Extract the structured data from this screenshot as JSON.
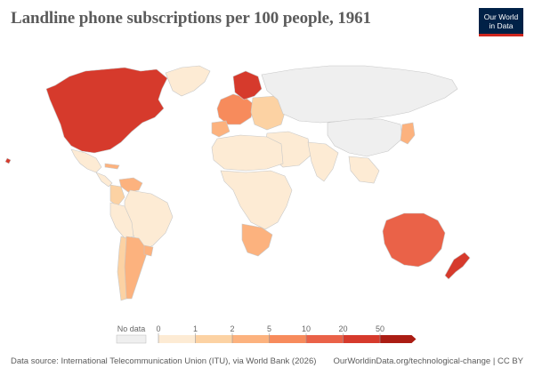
{
  "header": {
    "title": "Landline phone subscriptions per 100 people, 1961",
    "logo_line1": "Our World",
    "logo_line2": "in Data"
  },
  "legend": {
    "no_data_label": "No data",
    "thresholds": [
      "0",
      "1",
      "2",
      "5",
      "10",
      "20",
      "50"
    ],
    "colors": [
      "#fdebd4",
      "#fcd2a3",
      "#fcb27e",
      "#f78b5c",
      "#ea6248",
      "#d63a2c",
      "#ab1d14"
    ]
  },
  "colors": {
    "no_data": "#efefef",
    "border": "#c8c8c8"
  },
  "regions": [
    {
      "name": "North America",
      "band": 6
    },
    {
      "name": "Greenland",
      "band": 1
    },
    {
      "name": "Mexico",
      "band": 1
    },
    {
      "name": "Central America",
      "band": 1
    },
    {
      "name": "Cuba",
      "band": 3
    },
    {
      "name": "Venezuela",
      "band": 3
    },
    {
      "name": "Colombia",
      "band": 2
    },
    {
      "name": "Brazil",
      "band": 1
    },
    {
      "name": "Peru and Bolivia",
      "band": 1
    },
    {
      "name": "Argentina",
      "band": 3
    },
    {
      "name": "Chile",
      "band": 2
    },
    {
      "name": "Uruguay",
      "band": 3
    },
    {
      "name": "Western Europe",
      "band": 4
    },
    {
      "name": "Scandinavia",
      "band": 6
    },
    {
      "name": "Iberia",
      "band": 3
    },
    {
      "name": "Eastern Europe",
      "band": 2
    },
    {
      "name": "Russia and Central Asia",
      "band": 0
    },
    {
      "name": "China",
      "band": 0
    },
    {
      "name": "Middle East",
      "band": 1
    },
    {
      "name": "South Asia",
      "band": 1
    },
    {
      "name": "Southeast Asia",
      "band": 1
    },
    {
      "name": "Japan",
      "band": 3
    },
    {
      "name": "North Africa",
      "band": 1
    },
    {
      "name": "Sub-Saharan Africa",
      "band": 1
    },
    {
      "name": "South Africa",
      "band": 3
    },
    {
      "name": "Australia",
      "band": 5
    },
    {
      "name": "New Zealand",
      "band": 6
    },
    {
      "name": "Hawaii",
      "band": 6
    }
  ],
  "footer": {
    "source": "Data source: International Telecommunication Union (ITU), via World Bank (2026)",
    "credit": "OurWorldinData.org/technological-change | CC BY"
  }
}
